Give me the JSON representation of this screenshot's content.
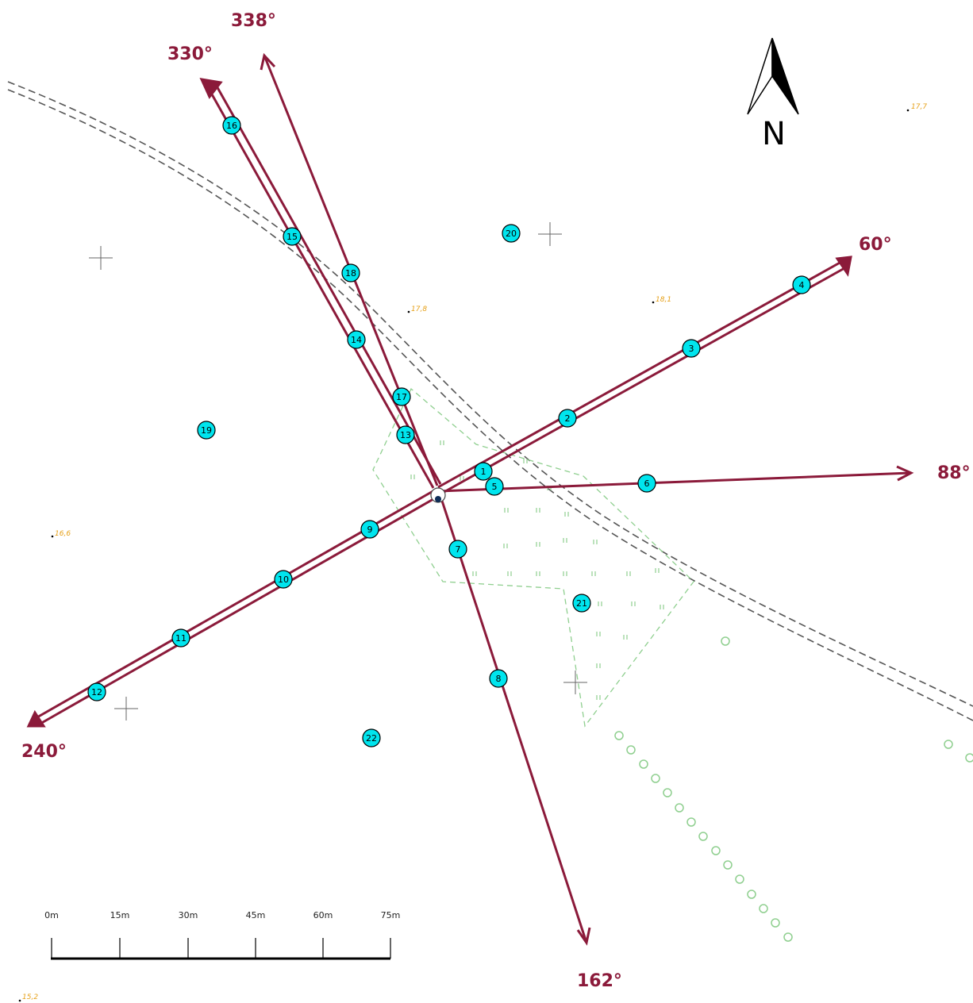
{
  "north_arrow": {
    "label": "N"
  },
  "bearings": [
    {
      "label": "338°",
      "degrees": 338
    },
    {
      "label": "330°",
      "degrees": 330
    },
    {
      "label": "60°",
      "degrees": 60
    },
    {
      "label": "88°",
      "degrees": 88
    },
    {
      "label": "240°",
      "degrees": 240
    },
    {
      "label": "162°",
      "degrees": 162
    }
  ],
  "points": [
    "1",
    "2",
    "3",
    "4",
    "5",
    "6",
    "7",
    "8",
    "9",
    "10",
    "11",
    "12",
    "13",
    "14",
    "15",
    "16",
    "17",
    "18",
    "19",
    "20",
    "21",
    "22"
  ],
  "elevations": [
    "17,7",
    "17,8",
    "18,1",
    "16,6",
    "15,2"
  ],
  "scale_bar": {
    "labels": [
      "0m",
      "15m",
      "30m",
      "45m",
      "60m",
      "75m"
    ]
  },
  "colors": {
    "bearing_line": "#8b1a3a",
    "point_fill": "#00e5ee",
    "elevation_text": "#e6a11a",
    "vegetation": "#8fcf8f",
    "road": "#555555"
  }
}
